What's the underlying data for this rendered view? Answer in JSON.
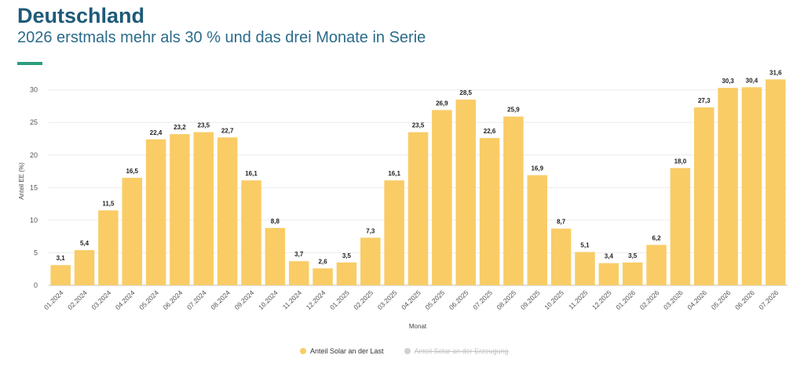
{
  "header": {
    "title": "Deutschland",
    "subtitle": "2026 erstmals mehr als 30 % und das drei Monate in Serie"
  },
  "colors": {
    "bar": "#f9cc66",
    "accent": "#2a9d7e",
    "title": "#1e5a78",
    "disabled": "#d0d0d0"
  },
  "legend": [
    {
      "label": "Anteil Solar an der Last",
      "active": true
    },
    {
      "label": "Anteil Solar an der Erzeugung",
      "active": false
    }
  ],
  "chart_data": {
    "type": "bar",
    "xlabel": "Monat",
    "ylabel": "Anteil EE (%)",
    "ylim": [
      0,
      32
    ],
    "yticks": [
      0,
      5,
      10,
      15,
      20,
      25,
      30
    ],
    "grid": true,
    "legend_position": "bottom",
    "categories": [
      "01.2024",
      "02.2024",
      "03.2024",
      "04.2024",
      "05.2024",
      "06.2024",
      "07.2024",
      "08.2024",
      "09.2024",
      "10.2024",
      "11.2024",
      "12.2024",
      "01.2025",
      "02.2025",
      "03.2025",
      "04.2025",
      "05.2025",
      "06.2025",
      "07.2025",
      "08.2025",
      "09.2025",
      "10.2025",
      "11.2025",
      "12.2025",
      "01.2026",
      "02.2026",
      "03.2026",
      "04.2026",
      "05.2026",
      "06.2026",
      "07.2026"
    ],
    "series": [
      {
        "name": "Anteil Solar an der Last",
        "values": [
          3.1,
          5.4,
          11.5,
          16.5,
          22.4,
          23.2,
          23.5,
          22.7,
          16.1,
          8.8,
          3.7,
          2.6,
          3.5,
          7.3,
          16.1,
          23.5,
          26.9,
          28.5,
          22.6,
          25.9,
          16.9,
          8.7,
          5.1,
          3.4,
          3.5,
          6.2,
          18.0,
          27.3,
          30.3,
          30.4,
          31.6
        ],
        "labels": [
          "3,1",
          "5,4",
          "11,5",
          "16,5",
          "22,4",
          "23,2",
          "23,5",
          "22,7",
          "16,1",
          "8,8",
          "3,7",
          "2,6",
          "3,5",
          "7,3",
          "16,1",
          "23,5",
          "26,9",
          "28,5",
          "22,6",
          "25,9",
          "16,9",
          "8,7",
          "5,1",
          "3,4",
          "3,5",
          "6,2",
          "18,0",
          "27,3",
          "30,3",
          "30,4",
          "31,6"
        ]
      }
    ]
  }
}
